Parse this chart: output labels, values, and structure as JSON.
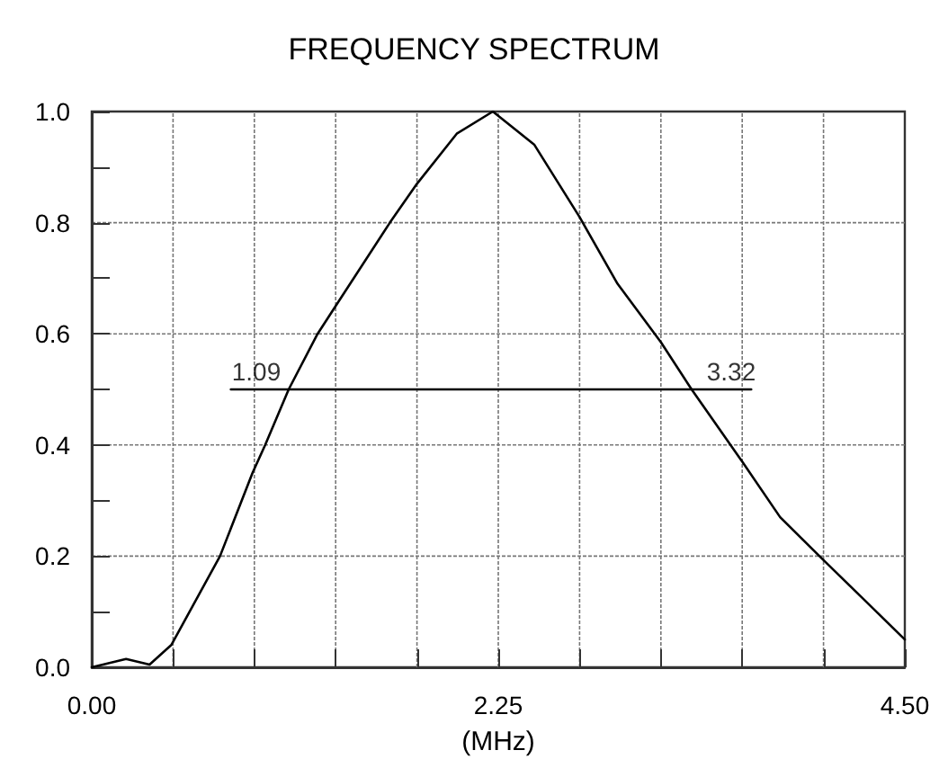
{
  "chart_data": {
    "type": "line",
    "title": "FREQUENCY SPECTRUM",
    "xlabel": "(MHz)",
    "x": [
      0,
      0.19,
      0.32,
      0.44,
      0.71,
      0.89,
      0.96,
      1.09,
      1.25,
      1.35,
      1.65,
      1.8,
      2.02,
      2.22,
      2.45,
      2.7,
      2.91,
      3.15,
      3.32,
      3.6,
      3.81,
      4.04,
      4.28,
      4.5
    ],
    "series": [
      {
        "color": "#000000",
        "values": [
          0,
          0.015,
          0.005,
          0.04,
          0.2,
          0.35,
          0.4,
          0.5,
          0.6,
          0.65,
          0.8,
          0.87,
          0.96,
          1.0,
          0.94,
          0.81,
          0.69,
          0.585,
          0.5,
          0.37,
          0.27,
          0.196,
          0.12,
          0.05
        ]
      },
      {
        "color": "#000000",
        "x": [
          0.77,
          3.65
        ],
        "values": [
          0.5,
          0.5
        ]
      }
    ],
    "annotations": [
      {
        "text": "1.09",
        "x": 1.09,
        "y": 0.5
      },
      {
        "text": "3.32",
        "x": 3.32,
        "y": 0.5
      }
    ],
    "xlim": [
      0,
      4.5
    ],
    "ylim": [
      0,
      1
    ],
    "xticks": [
      {
        "value": 0,
        "label": "0.00"
      },
      {
        "value": 0.45,
        "label": null
      },
      {
        "value": 0.9,
        "label": null
      },
      {
        "value": 1.35,
        "label": null
      },
      {
        "value": 1.8,
        "label": null
      },
      2.25,
      {
        "value": 2.7,
        "label": null
      },
      {
        "value": 3.15,
        "label": null
      },
      {
        "value": 3.6,
        "label": null
      },
      {
        "value": 4.05,
        "label": null
      },
      {
        "value": 4.5,
        "label": "4.50"
      }
    ],
    "yticks": [
      {
        "value": 0,
        "label": "0.0"
      },
      {
        "value": 0.1,
        "label": null
      },
      0.2,
      {
        "value": 0.3,
        "label": null
      },
      0.4,
      {
        "value": 0.5,
        "label": null
      },
      0.6,
      {
        "value": 0.7,
        "label": null
      },
      0.8,
      {
        "value": 0.9,
        "label": null
      },
      {
        "value": 1,
        "label": "1.0"
      }
    ],
    "grid": true,
    "marker": "none",
    "line_style": "solid"
  }
}
